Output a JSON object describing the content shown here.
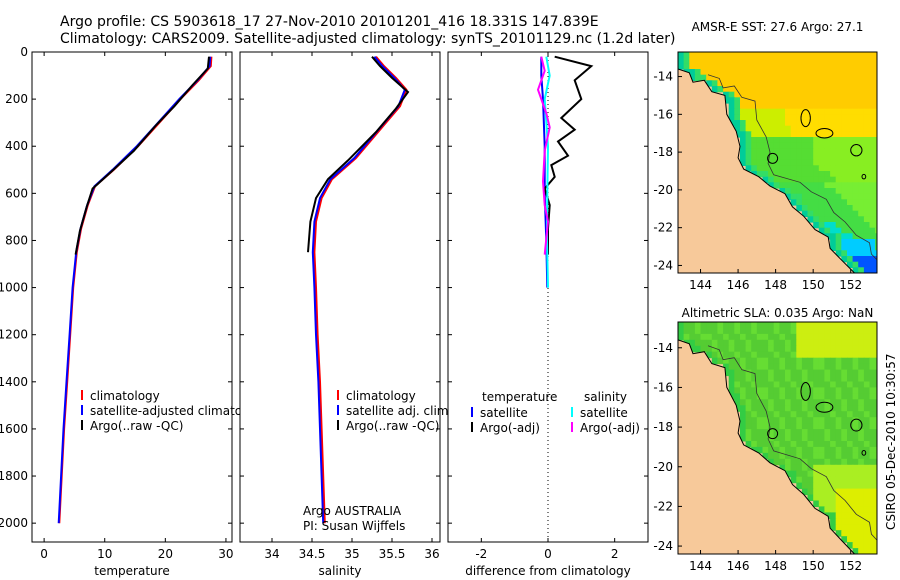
{
  "title": {
    "line1": "Argo profile: CS 5903618_17 27-Nov-2010 20101201_416 18.331S 147.839E",
    "line2": "Climatology: CARS2009. Satellite-adjusted climatology: synTS_20101129.nc (1.2d later)"
  },
  "side_label": "CSIRO 05-Dec-2010 10:30:57",
  "colors": {
    "climatology": "#ff0000",
    "satellite": "#0000ff",
    "argo": "#000000",
    "sal_satellite": "#00ffff",
    "sal_argo": "#ff00ff",
    "land": "#f7c99a",
    "coast": "#000000"
  },
  "chart_data": [
    {
      "type": "line",
      "id": "temperature",
      "xlabel": "temperature",
      "ylabel": "",
      "xlim": [
        -2,
        31
      ],
      "ylim": [
        2080,
        0
      ],
      "x_ticks": [
        0,
        10,
        20,
        30
      ],
      "y_ticks": [
        0,
        200,
        400,
        600,
        800,
        1000,
        1200,
        1400,
        1600,
        1800,
        2000
      ],
      "legend": [
        "climatology",
        "satellite-adjusted climatology",
        "Argo(..raw -QC)"
      ],
      "legend_position": "lower-center",
      "series": [
        {
          "name": "climatology",
          "color_key": "climatology",
          "points": [
            [
              27.6,
              20
            ],
            [
              27.5,
              60
            ],
            [
              25.5,
              120
            ],
            [
              22.5,
              200
            ],
            [
              19,
              300
            ],
            [
              15.5,
              400
            ],
            [
              11.5,
              500
            ],
            [
              8.4,
              570
            ],
            [
              7.2,
              650
            ],
            [
              6.1,
              750
            ],
            [
              5.4,
              850
            ],
            [
              4.8,
              1000
            ],
            [
              4.3,
              1200
            ],
            [
              3.8,
              1400
            ],
            [
              3.3,
              1600
            ],
            [
              2.9,
              1800
            ],
            [
              2.5,
              2000
            ]
          ]
        },
        {
          "name": "satellite-adjusted climatology",
          "color_key": "satellite",
          "points": [
            [
              27.4,
              20
            ],
            [
              27.3,
              60
            ],
            [
              25.3,
              120
            ],
            [
              22.3,
              200
            ],
            [
              18.8,
              300
            ],
            [
              15.3,
              400
            ],
            [
              11.3,
              500
            ],
            [
              8.3,
              570
            ],
            [
              7.1,
              650
            ],
            [
              6.0,
              750
            ],
            [
              5.3,
              850
            ],
            [
              4.7,
              1000
            ],
            [
              4.2,
              1200
            ],
            [
              3.7,
              1400
            ],
            [
              3.2,
              1600
            ],
            [
              2.8,
              1800
            ],
            [
              2.4,
              2000
            ]
          ]
        },
        {
          "name": "Argo(..raw -QC)",
          "color_key": "argo",
          "points": [
            [
              27.2,
              20
            ],
            [
              27.0,
              70
            ],
            [
              24.5,
              140
            ],
            [
              21.5,
              230
            ],
            [
              18.5,
              310
            ],
            [
              14.8,
              420
            ],
            [
              11.0,
              510
            ],
            [
              8.0,
              580
            ],
            [
              7.0,
              660
            ],
            [
              5.9,
              760
            ],
            [
              5.2,
              860
            ]
          ]
        }
      ]
    },
    {
      "type": "line",
      "id": "salinity",
      "xlabel": "salinity",
      "ylabel": "",
      "xlim": [
        33.6,
        36.1
      ],
      "ylim": [
        2080,
        0
      ],
      "x_ticks": [
        34,
        34.5,
        35,
        35.5,
        36
      ],
      "y_ticks": [
        0,
        200,
        400,
        600,
        800,
        1000,
        1200,
        1400,
        1600,
        1800,
        2000
      ],
      "legend": [
        "climatology",
        "satellite adj. clim.",
        "Argo(..raw -QC)"
      ],
      "legend_position": "lower-right",
      "annotation": [
        "Argo AUSTRALIA",
        "PI: Susan Wijffels"
      ],
      "series": [
        {
          "name": "climatology",
          "color_key": "climatology",
          "points": [
            [
              35.3,
              20
            ],
            [
              35.4,
              60
            ],
            [
              35.55,
              110
            ],
            [
              35.68,
              160
            ],
            [
              35.6,
              230
            ],
            [
              35.35,
              330
            ],
            [
              35.05,
              450
            ],
            [
              34.75,
              540
            ],
            [
              34.62,
              620
            ],
            [
              34.55,
              720
            ],
            [
              34.53,
              850
            ],
            [
              34.55,
              1000
            ],
            [
              34.57,
              1200
            ],
            [
              34.6,
              1400
            ],
            [
              34.62,
              1600
            ],
            [
              34.64,
              1800
            ],
            [
              34.66,
              2000
            ]
          ]
        },
        {
          "name": "satellite adj. clim.",
          "color_key": "satellite",
          "points": [
            [
              35.28,
              20
            ],
            [
              35.38,
              60
            ],
            [
              35.53,
              110
            ],
            [
              35.66,
              160
            ],
            [
              35.58,
              230
            ],
            [
              35.33,
              330
            ],
            [
              35.03,
              450
            ],
            [
              34.73,
              540
            ],
            [
              34.6,
              620
            ],
            [
              34.53,
              720
            ],
            [
              34.51,
              850
            ],
            [
              34.53,
              1000
            ],
            [
              34.55,
              1200
            ],
            [
              34.58,
              1400
            ],
            [
              34.6,
              1600
            ],
            [
              34.62,
              1800
            ],
            [
              34.64,
              2000
            ]
          ]
        },
        {
          "name": "Argo(..raw -QC)",
          "color_key": "argo",
          "points": [
            [
              35.25,
              20
            ],
            [
              35.35,
              60
            ],
            [
              35.5,
              110
            ],
            [
              35.7,
              170
            ],
            [
              35.55,
              240
            ],
            [
              35.3,
              340
            ],
            [
              34.95,
              460
            ],
            [
              34.7,
              540
            ],
            [
              34.55,
              620
            ],
            [
              34.48,
              720
            ],
            [
              34.45,
              850
            ]
          ]
        }
      ]
    },
    {
      "type": "line",
      "id": "difference",
      "xlabel": "difference from climatology",
      "ylabel": "",
      "xlim": [
        -3,
        3
      ],
      "ylim": [
        2080,
        0
      ],
      "x_ticks": [
        -2,
        0,
        2
      ],
      "y_ticks": [
        0,
        200,
        400,
        600,
        800,
        1000,
        1200,
        1400,
        1600,
        1800,
        2000
      ],
      "zero_line": true,
      "legend_groups": [
        {
          "title": "temperature",
          "items": [
            "satellite",
            "Argo(-adj)"
          ]
        },
        {
          "title": "salinity",
          "items": [
            "satellite",
            "Argo(-adj)"
          ]
        }
      ],
      "legend_position": "lower-center",
      "series": [
        {
          "name": "temperature satellite",
          "color_key": "satellite",
          "points": [
            [
              -0.2,
              20
            ],
            [
              -0.2,
              100
            ],
            [
              -0.15,
              200
            ],
            [
              -0.1,
              400
            ],
            [
              -0.1,
              600
            ],
            [
              -0.05,
              800
            ],
            [
              -0.02,
              1000
            ]
          ]
        },
        {
          "name": "temperature Argo(-adj)",
          "color_key": "argo",
          "points": [
            [
              0.2,
              20
            ],
            [
              1.3,
              60
            ],
            [
              0.8,
              120
            ],
            [
              1.0,
              200
            ],
            [
              0.4,
              280
            ],
            [
              0.8,
              330
            ],
            [
              0.3,
              380
            ],
            [
              0.6,
              440
            ],
            [
              0.1,
              480
            ],
            [
              0.2,
              530
            ],
            [
              -0.1,
              580
            ],
            [
              0.05,
              650
            ],
            [
              0.0,
              750
            ],
            [
              0.0,
              860
            ]
          ]
        },
        {
          "name": "salinity satellite",
          "color_key": "sal_satellite",
          "points": [
            [
              -0.05,
              20
            ],
            [
              0.05,
              100
            ],
            [
              -0.1,
              200
            ],
            [
              0.0,
              400
            ],
            [
              -0.02,
              600
            ],
            [
              -0.03,
              800
            ],
            [
              0.0,
              1000
            ]
          ]
        },
        {
          "name": "salinity Argo(-adj)",
          "color_key": "sal_argo",
          "points": [
            [
              -0.2,
              20
            ],
            [
              -0.1,
              80
            ],
            [
              -0.3,
              160
            ],
            [
              -0.05,
              260
            ],
            [
              0.05,
              320
            ],
            [
              -0.1,
              420
            ],
            [
              -0.15,
              550
            ],
            [
              -0.1,
              650
            ],
            [
              0.0,
              720
            ],
            [
              -0.1,
              860
            ]
          ]
        }
      ]
    },
    {
      "type": "heatmap",
      "id": "sst-map",
      "title": "AMSR-E SST: 27.6 Argo: 27.1",
      "x_ticks": [
        144,
        146,
        148,
        150,
        152
      ],
      "y_ticks": [
        -14,
        -16,
        -18,
        -20,
        -22,
        -24
      ],
      "xlim": [
        142.8,
        153.4
      ],
      "ylim": [
        -24.4,
        -12.7
      ],
      "profile_marker": [
        147.84,
        -18.33
      ],
      "colormap": "sst"
    },
    {
      "type": "heatmap",
      "id": "sla-map",
      "title": "Altimetric SLA: 0.035 Argo: NaN",
      "x_ticks": [
        144,
        146,
        148,
        150,
        152
      ],
      "y_ticks": [
        -14,
        -16,
        -18,
        -20,
        -22,
        -24
      ],
      "xlim": [
        142.8,
        153.4
      ],
      "ylim": [
        -24.4,
        -12.7
      ],
      "profile_marker": [
        147.84,
        -18.33
      ],
      "colormap": "sla"
    }
  ]
}
